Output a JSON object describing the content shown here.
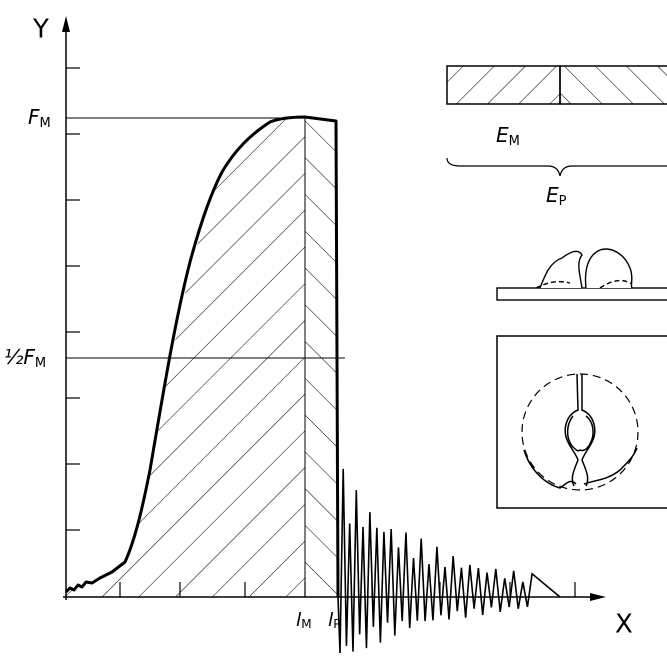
{
  "axes": {
    "y_label": "Y",
    "x_label": "X"
  },
  "levels": {
    "max_force": {
      "text": "F",
      "subscript": "M"
    },
    "half_force": {
      "text": "½F",
      "subscript": "M"
    }
  },
  "positions": {
    "max_force_point": {
      "text": "l",
      "subscript": "M"
    },
    "end_point": {
      "text": "l",
      "subscript": "P"
    }
  },
  "energies": {
    "max_energy": {
      "text": "E",
      "subscript": "M"
    },
    "total_energy": {
      "text": "E",
      "subscript": "P"
    }
  }
}
